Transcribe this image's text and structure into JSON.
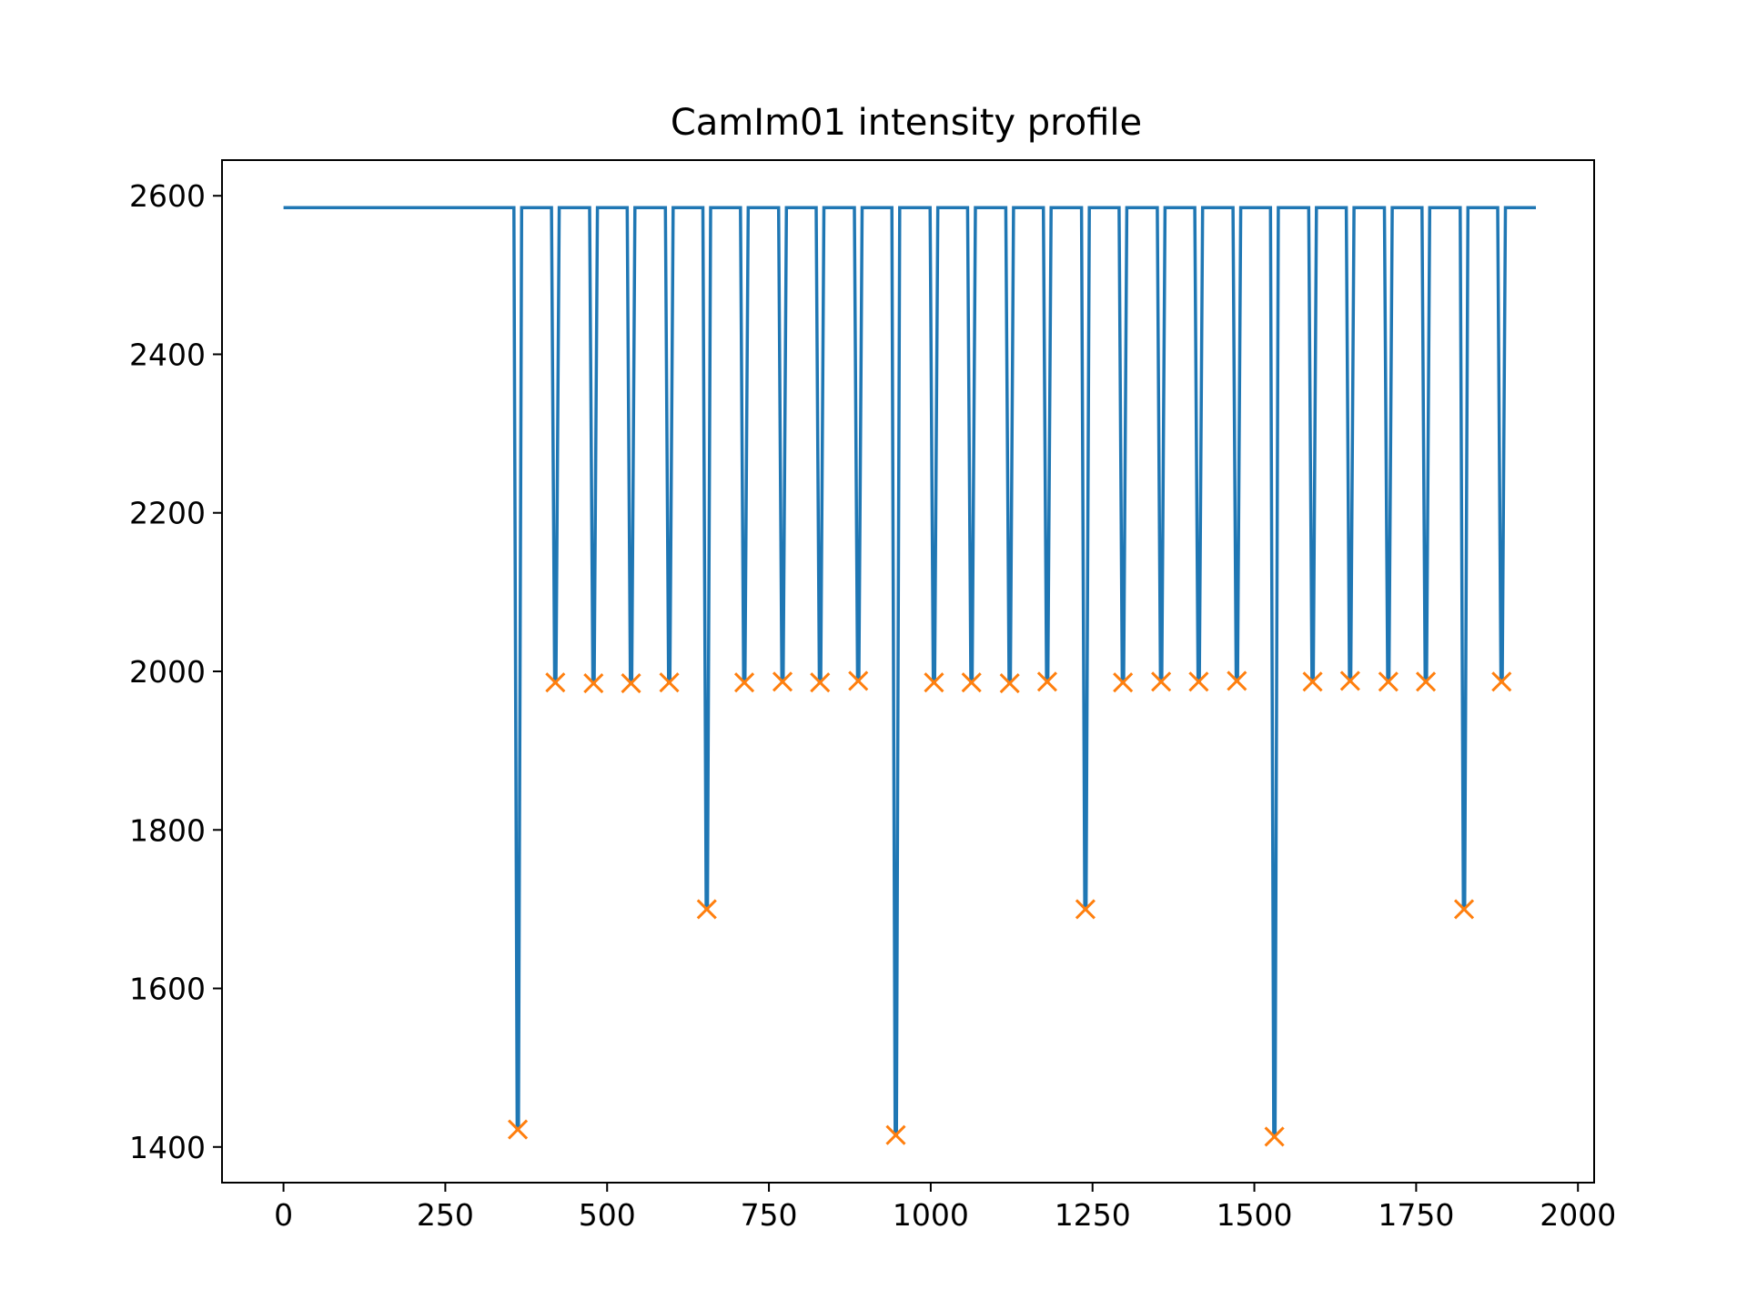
{
  "chart_data": {
    "type": "line",
    "title": "CamIm01 intensity profile",
    "xlabel": "",
    "ylabel": "",
    "xlim": [
      -95,
      2025
    ],
    "ylim": [
      1355,
      2645
    ],
    "xticks": [
      0,
      250,
      500,
      750,
      1000,
      1250,
      1500,
      1750,
      2000
    ],
    "yticks": [
      1400,
      1600,
      1800,
      2000,
      2200,
      2400,
      2600
    ],
    "grid": false,
    "colors": {
      "line": "#1f77b4",
      "marker": "#ff7f0e"
    },
    "series": [
      {
        "kind": "line",
        "baseline": 2585,
        "x_range": [
          0,
          1935
        ],
        "dip_half_width": 6,
        "dips": [
          {
            "x": 362,
            "y": 1422
          },
          {
            "x": 420,
            "y": 1986
          },
          {
            "x": 479,
            "y": 1985
          },
          {
            "x": 537,
            "y": 1985
          },
          {
            "x": 596,
            "y": 1986
          },
          {
            "x": 654,
            "y": 1700
          },
          {
            "x": 712,
            "y": 1986
          },
          {
            "x": 771,
            "y": 1987
          },
          {
            "x": 829,
            "y": 1986
          },
          {
            "x": 888,
            "y": 1988
          },
          {
            "x": 946,
            "y": 1415
          },
          {
            "x": 1005,
            "y": 1986
          },
          {
            "x": 1063,
            "y": 1986
          },
          {
            "x": 1122,
            "y": 1985
          },
          {
            "x": 1180,
            "y": 1987
          },
          {
            "x": 1239,
            "y": 1700
          },
          {
            "x": 1297,
            "y": 1986
          },
          {
            "x": 1356,
            "y": 1987
          },
          {
            "x": 1414,
            "y": 1987
          },
          {
            "x": 1473,
            "y": 1988
          },
          {
            "x": 1531,
            "y": 1413
          },
          {
            "x": 1590,
            "y": 1987
          },
          {
            "x": 1648,
            "y": 1988
          },
          {
            "x": 1707,
            "y": 1987
          },
          {
            "x": 1765,
            "y": 1987
          },
          {
            "x": 1824,
            "y": 1700
          },
          {
            "x": 1882,
            "y": 1987
          }
        ]
      },
      {
        "kind": "markers",
        "marker": "x",
        "points_from": "dips"
      }
    ]
  }
}
